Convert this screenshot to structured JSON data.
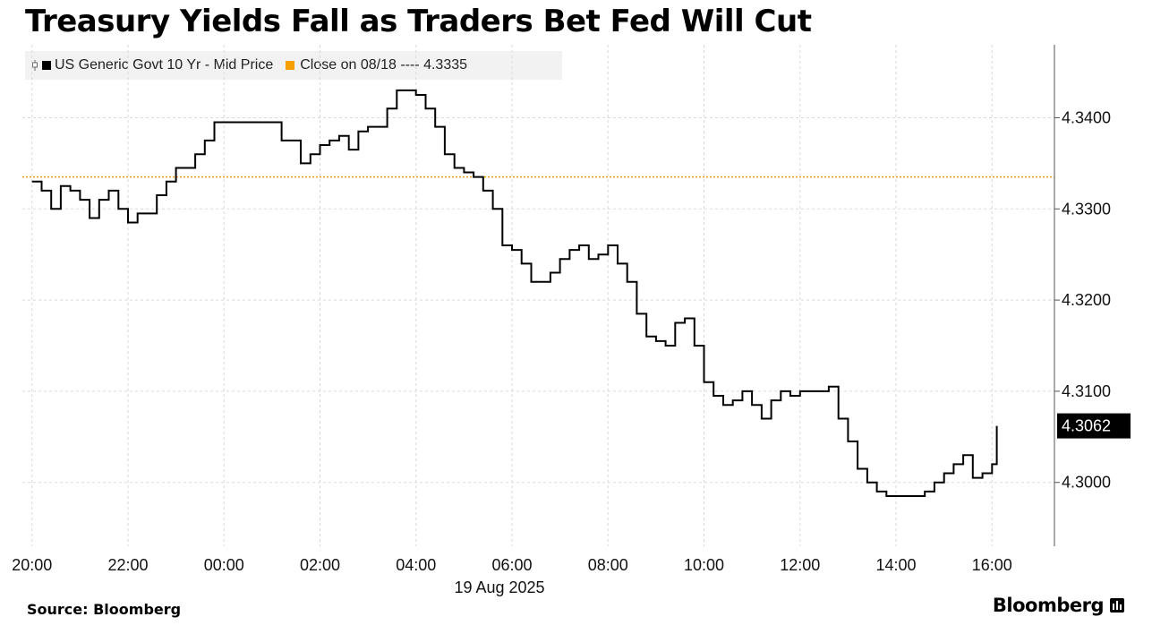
{
  "title": "Treasury Yields Fall as Traders Bet Fed Will Cut",
  "legend": {
    "series_label": "US Generic Govt 10 Yr - Mid Price",
    "close_label": "Close on 08/18 ---- 4.3335"
  },
  "footer": {
    "source": "Source: Bloomberg",
    "brand": "Bloomberg"
  },
  "colors": {
    "series": "#000000",
    "close_line": "#f5a000",
    "grid": "#d9d9d9"
  },
  "chart_data": {
    "type": "line",
    "title": "Treasury Yields Fall as Traders Bet Fed Will Cut",
    "xlabel": "19 Aug 2025",
    "ylabel": "",
    "x_unit": "hours relative to 00:00 on 19 Aug 2025",
    "xlim": [
      -4.2,
      17.3
    ],
    "ylim": [
      4.293,
      4.348
    ],
    "x_ticks": [
      {
        "value": -4,
        "label": "20:00"
      },
      {
        "value": -2,
        "label": "22:00"
      },
      {
        "value": 0,
        "label": "00:00"
      },
      {
        "value": 2,
        "label": "02:00"
      },
      {
        "value": 4,
        "label": "04:00"
      },
      {
        "value": 6,
        "label": "06:00"
      },
      {
        "value": 8,
        "label": "08:00"
      },
      {
        "value": 10,
        "label": "10:00"
      },
      {
        "value": 12,
        "label": "12:00"
      },
      {
        "value": 14,
        "label": "14:00"
      },
      {
        "value": 16,
        "label": "16:00"
      }
    ],
    "y_ticks": [
      {
        "value": 4.3,
        "label": "4.3000"
      },
      {
        "value": 4.31,
        "label": "4.3100"
      },
      {
        "value": 4.32,
        "label": "4.3200"
      },
      {
        "value": 4.33,
        "label": "4.3300"
      },
      {
        "value": 4.34,
        "label": "4.3400"
      }
    ],
    "reference_line": {
      "name": "Close on 08/18",
      "value": 4.3335
    },
    "last_value": {
      "value": 4.3062,
      "label": "4.3062"
    },
    "grid": true,
    "legend_position": "top-left",
    "series": [
      {
        "name": "US Generic Govt 10 Yr - Mid Price",
        "x": [
          -4.0,
          -3.8,
          -3.6,
          -3.4,
          -3.2,
          -3.0,
          -2.8,
          -2.6,
          -2.4,
          -2.2,
          -2.0,
          -1.8,
          -1.6,
          -1.4,
          -1.2,
          -1.0,
          -0.8,
          -0.6,
          -0.4,
          -0.2,
          0.0,
          0.2,
          0.4,
          0.6,
          0.8,
          1.0,
          1.2,
          1.4,
          1.6,
          1.8,
          2.0,
          2.2,
          2.4,
          2.6,
          2.8,
          3.0,
          3.2,
          3.4,
          3.6,
          3.8,
          4.0,
          4.2,
          4.4,
          4.6,
          4.8,
          5.0,
          5.2,
          5.4,
          5.6,
          5.8,
          6.0,
          6.2,
          6.4,
          6.6,
          6.8,
          7.0,
          7.2,
          7.4,
          7.6,
          7.8,
          8.0,
          8.2,
          8.4,
          8.6,
          8.8,
          9.0,
          9.2,
          9.4,
          9.6,
          9.8,
          10.0,
          10.2,
          10.4,
          10.6,
          10.8,
          11.0,
          11.2,
          11.4,
          11.6,
          11.8,
          12.0,
          12.2,
          12.4,
          12.6,
          12.8,
          13.0,
          13.2,
          13.4,
          13.6,
          13.8,
          14.0,
          14.2,
          14.4,
          14.6,
          14.8,
          15.0,
          15.2,
          15.4,
          15.6,
          15.8,
          16.0,
          16.1
        ],
        "y": [
          4.333,
          4.332,
          4.33,
          4.3325,
          4.332,
          4.331,
          4.329,
          4.331,
          4.332,
          4.33,
          4.3285,
          4.3295,
          4.3295,
          4.3315,
          4.333,
          4.3345,
          4.3345,
          4.336,
          4.3375,
          4.3395,
          4.3395,
          4.3395,
          4.3395,
          4.3395,
          4.3395,
          4.3395,
          4.3375,
          4.3375,
          4.335,
          4.336,
          4.337,
          4.3375,
          4.338,
          4.3365,
          4.3385,
          4.339,
          4.339,
          4.341,
          4.343,
          4.343,
          4.3425,
          4.341,
          4.339,
          4.336,
          4.3345,
          4.334,
          4.3335,
          4.332,
          4.33,
          4.326,
          4.3255,
          4.324,
          4.322,
          4.322,
          4.323,
          4.3245,
          4.3255,
          4.326,
          4.3245,
          4.325,
          4.326,
          4.324,
          4.322,
          4.3185,
          4.316,
          4.3155,
          4.315,
          4.3175,
          4.318,
          4.315,
          4.311,
          4.3095,
          4.3085,
          4.309,
          4.31,
          4.3085,
          4.307,
          4.309,
          4.31,
          4.3095,
          4.31,
          4.31,
          4.31,
          4.3105,
          4.307,
          4.3045,
          4.3015,
          4.3,
          4.299,
          4.2985,
          4.2985,
          4.2985,
          4.2985,
          4.299,
          4.3,
          4.301,
          4.302,
          4.303,
          4.3005,
          4.301,
          4.302,
          4.3062
        ]
      }
    ]
  }
}
